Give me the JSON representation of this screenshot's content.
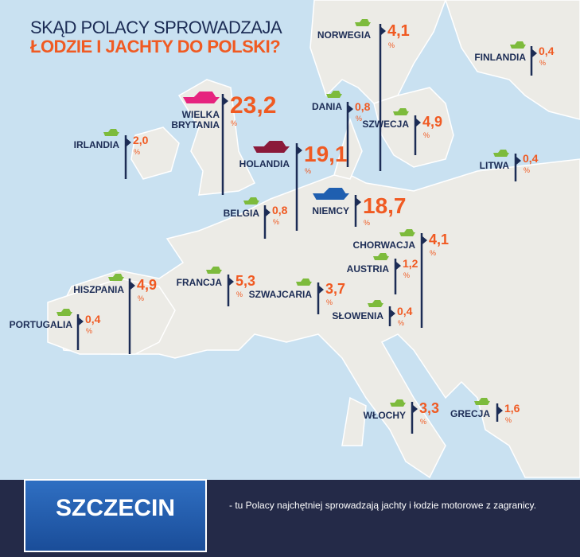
{
  "title": {
    "line1": "SKĄD POLACY SPROWADZAJA",
    "line2": "ŁODZIE I JACHTY DO POLSKI?"
  },
  "unit": "%",
  "countries": [
    {
      "name": "NORWEGIA",
      "value": "4,1",
      "color": "#7dbb3c"
    },
    {
      "name": "FINLANDIA",
      "value": "0,4",
      "color": "#7dbb3c"
    },
    {
      "name": "WIELKA BRYTANIA",
      "value": "23,2",
      "color": "#e6237e"
    },
    {
      "name": "DANIA",
      "value": "0,8",
      "color": "#7dbb3c"
    },
    {
      "name": "SZWECJA",
      "value": "4,9",
      "color": "#7dbb3c"
    },
    {
      "name": "IRLANDIA",
      "value": "2,0",
      "color": "#7dbb3c"
    },
    {
      "name": "HOLANDIA",
      "value": "19,1",
      "color": "#8b1a3a"
    },
    {
      "name": "LITWA",
      "value": "0,4",
      "color": "#7dbb3c"
    },
    {
      "name": "BELGIA",
      "value": "0,8",
      "color": "#7dbb3c"
    },
    {
      "name": "NIEMCY",
      "value": "18,7",
      "color": "#1f5fb0"
    },
    {
      "name": "CHORWACJA",
      "value": "4,1",
      "color": "#7dbb3c"
    },
    {
      "name": "AUSTRIA",
      "value": "1,2",
      "color": "#7dbb3c"
    },
    {
      "name": "HISZPANIA",
      "value": "4,9",
      "color": "#7dbb3c"
    },
    {
      "name": "FRANCJA",
      "value": "5,3",
      "color": "#7dbb3c"
    },
    {
      "name": "SZWAJCARIA",
      "value": "3,7",
      "color": "#7dbb3c"
    },
    {
      "name": "SŁOWENIA",
      "value": "0,4",
      "color": "#7dbb3c"
    },
    {
      "name": "PORTUGALIA",
      "value": "0,4",
      "color": "#7dbb3c"
    },
    {
      "name": "WŁOCHY",
      "value": "3,3",
      "color": "#7dbb3c"
    },
    {
      "name": "GRECJA",
      "value": "1,6",
      "color": "#7dbb3c"
    }
  ],
  "footer": {
    "badge": "SZCZECIN",
    "text": "- tu Polacy najchętniej sprowadzają jachty i łodzie motorowe z zagranicy."
  }
}
